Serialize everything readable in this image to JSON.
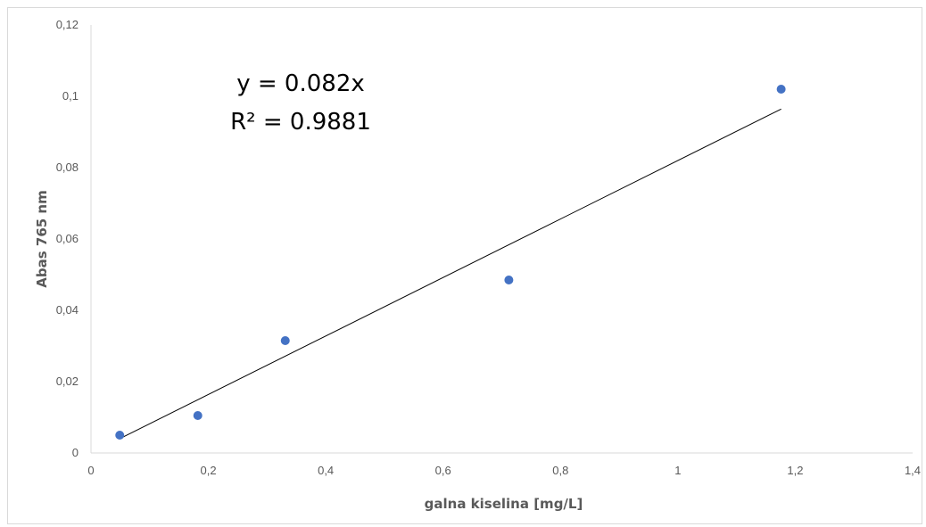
{
  "chart_data": {
    "type": "scatter",
    "title": "",
    "xlabel": "galna kiselina [mg/L]",
    "ylabel": "Abas 765 nm",
    "xlim": [
      0,
      1.4
    ],
    "ylim": [
      0,
      0.12
    ],
    "x_ticks": [
      "0",
      "0,2",
      "0,4",
      "0,6",
      "0,8",
      "1",
      "1,2",
      "1,4"
    ],
    "y_ticks": [
      "0",
      "0,02",
      "0,04",
      "0,06",
      "0,08",
      "0,1",
      "0,12"
    ],
    "x_tick_values": [
      0,
      0.2,
      0.4,
      0.6,
      0.8,
      1.0,
      1.2,
      1.4
    ],
    "y_tick_values": [
      0,
      0.02,
      0.04,
      0.06,
      0.08,
      0.1,
      0.12
    ],
    "grid": false,
    "series": [
      {
        "x": [
          0.049,
          0.182,
          0.331,
          0.712,
          1.176
        ],
        "y": [
          0.005,
          0.0105,
          0.0315,
          0.0485,
          0.102
        ],
        "color": "#4472C4"
      }
    ],
    "trendline": {
      "type": "linear",
      "slope": 0.082,
      "intercept": 0,
      "x_range": [
        0.049,
        1.176
      ],
      "color": "#000000"
    },
    "annotations": {
      "equation": "y = 0.082x",
      "r_squared": "R² = 0.9881"
    }
  }
}
